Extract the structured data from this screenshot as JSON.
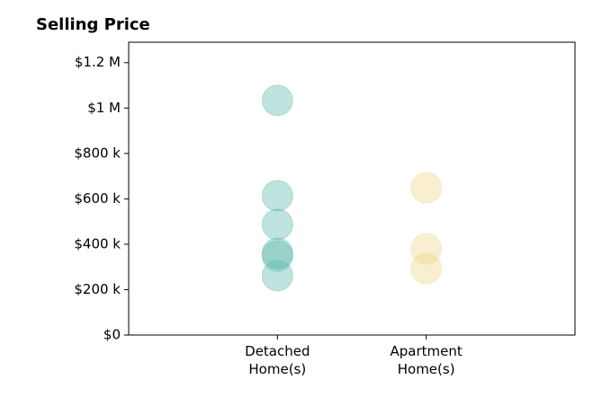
{
  "chart_data": {
    "type": "strip",
    "title": "Selling Price",
    "categories": [
      "Detached Home(s)",
      "Apartment Home(s)"
    ],
    "values": [
      [
        1034000,
        614000,
        487000,
        360000,
        348000,
        261000
      ],
      [
        649000,
        380000,
        293000
      ]
    ],
    "colors": [
      "#5fb8ad",
      "#f0d48a"
    ],
    "opacity": 0.4,
    "xlim": [
      -1,
      2
    ],
    "ylim": [
      0,
      1290000
    ],
    "yticks": [
      {
        "value": 0,
        "label": "$0"
      },
      {
        "value": 200000,
        "label": "$200 k"
      },
      {
        "value": 400000,
        "label": "$400 k"
      },
      {
        "value": 600000,
        "label": "$600 k"
      },
      {
        "value": 800000,
        "label": "$800 k"
      },
      {
        "value": 1000000,
        "label": "$1 M"
      },
      {
        "value": 1200000,
        "label": "$1.2 M"
      }
    ],
    "grid": false
  }
}
